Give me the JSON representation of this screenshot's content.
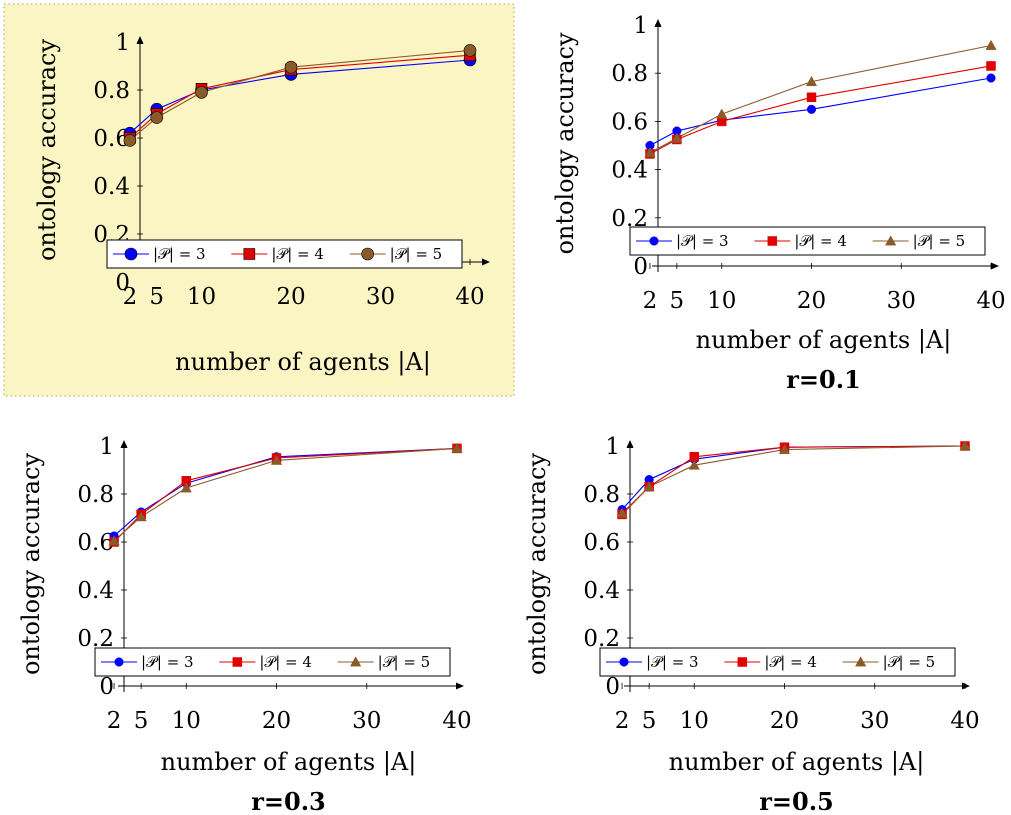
{
  "chart_data": [
    {
      "type": "line",
      "caption": "",
      "highlighted": true,
      "highlight_color": "#fbf5c4",
      "marker_style": "circle-large",
      "x": [
        2,
        5,
        10,
        20,
        40
      ],
      "x_ticks": [
        "2",
        "5",
        "10",
        "20",
        "30",
        "40"
      ],
      "y_ticks": [
        "0",
        "0.2",
        "0.4",
        "0.6",
        "0.8",
        "1"
      ],
      "xlabel": "number of agents |A|",
      "ylabel": "ontology accuracy",
      "xlim": [
        0,
        40
      ],
      "ylim": [
        0,
        1
      ],
      "series": [
        {
          "name": "|𝒫| = 3",
          "color": "#0000ff",
          "marker": "circle",
          "values": [
            0.62,
            0.72,
            0.8,
            0.865,
            0.925
          ]
        },
        {
          "name": "|𝒫| = 4",
          "color": "#e00000",
          "marker": "square",
          "values": [
            0.6,
            0.7,
            0.805,
            0.885,
            0.945
          ]
        },
        {
          "name": "|𝒫| = 5",
          "color": "#8b5a2b",
          "marker": "circle",
          "values": [
            0.59,
            0.685,
            0.79,
            0.895,
            0.965
          ]
        }
      ]
    },
    {
      "type": "line",
      "caption": "r=0.1",
      "highlighted": false,
      "marker_style": "small",
      "x": [
        2,
        5,
        10,
        20,
        40
      ],
      "x_ticks": [
        "2",
        "5",
        "10",
        "20",
        "30",
        "40"
      ],
      "y_ticks": [
        "0",
        "0.2",
        "0.4",
        "0.6",
        "0.8",
        "1"
      ],
      "xlabel": "number of agents |A|",
      "ylabel": "ontology accuracy",
      "xlim": [
        0,
        40
      ],
      "ylim": [
        0,
        1
      ],
      "series": [
        {
          "name": "|𝒫| = 3",
          "color": "#0000ff",
          "marker": "circle",
          "values": [
            0.5,
            0.56,
            0.605,
            0.65,
            0.78
          ]
        },
        {
          "name": "|𝒫| = 4",
          "color": "#e00000",
          "marker": "square",
          "values": [
            0.465,
            0.525,
            0.6,
            0.7,
            0.83
          ]
        },
        {
          "name": "|𝒫| = 5",
          "color": "#8b5a2b",
          "marker": "triangle",
          "values": [
            0.47,
            0.53,
            0.63,
            0.765,
            0.915
          ]
        }
      ]
    },
    {
      "type": "line",
      "caption": "r=0.3",
      "highlighted": false,
      "marker_style": "small",
      "x": [
        2,
        5,
        10,
        20,
        40
      ],
      "x_ticks": [
        "2",
        "5",
        "10",
        "20",
        "30",
        "40"
      ],
      "y_ticks": [
        "0",
        "0.2",
        "0.4",
        "0.6",
        "0.8",
        "1"
      ],
      "xlabel": "number of agents |A|",
      "ylabel": "ontology accuracy",
      "xlim": [
        0,
        40
      ],
      "ylim": [
        0,
        1
      ],
      "series": [
        {
          "name": "|𝒫| = 3",
          "color": "#0000ff",
          "marker": "circle",
          "values": [
            0.625,
            0.725,
            0.845,
            0.955,
            0.99
          ]
        },
        {
          "name": "|𝒫| = 4",
          "color": "#e00000",
          "marker": "square",
          "values": [
            0.6,
            0.715,
            0.855,
            0.95,
            0.99
          ]
        },
        {
          "name": "|𝒫| = 5",
          "color": "#8b5a2b",
          "marker": "triangle",
          "values": [
            0.605,
            0.705,
            0.825,
            0.94,
            0.99
          ]
        }
      ]
    },
    {
      "type": "line",
      "caption": "r=0.5",
      "highlighted": false,
      "marker_style": "small",
      "x": [
        2,
        5,
        10,
        20,
        40
      ],
      "x_ticks": [
        "2",
        "5",
        "10",
        "20",
        "30",
        "40"
      ],
      "y_ticks": [
        "0",
        "0.2",
        "0.4",
        "0.6",
        "0.8",
        "1"
      ],
      "xlabel": "number of agents |A|",
      "ylabel": "ontology accuracy",
      "xlim": [
        0,
        40
      ],
      "ylim": [
        0,
        1
      ],
      "series": [
        {
          "name": "|𝒫| = 3",
          "color": "#0000ff",
          "marker": "circle",
          "values": [
            0.735,
            0.86,
            0.945,
            0.995,
            1.0
          ]
        },
        {
          "name": "|𝒫| = 4",
          "color": "#e00000",
          "marker": "square",
          "values": [
            0.715,
            0.83,
            0.955,
            0.995,
            1.0
          ]
        },
        {
          "name": "|𝒫| = 5",
          "color": "#8b5a2b",
          "marker": "triangle",
          "values": [
            0.72,
            0.83,
            0.92,
            0.985,
            1.0
          ]
        }
      ]
    }
  ]
}
